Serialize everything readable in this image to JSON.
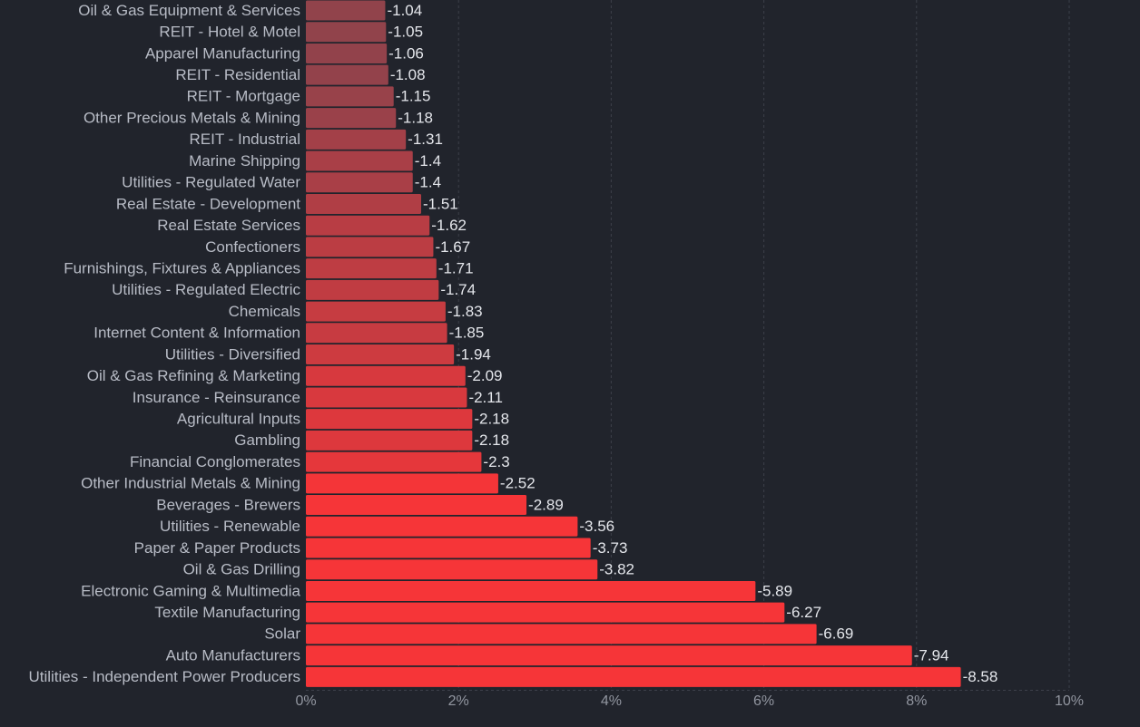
{
  "chart_data": {
    "type": "bar",
    "orientation": "horizontal",
    "categories": [
      "Oil & Gas Equipment & Services",
      "REIT - Hotel & Motel",
      "Apparel Manufacturing",
      "REIT - Residential",
      "REIT - Mortgage",
      "Other Precious Metals & Mining",
      "REIT - Industrial",
      "Marine Shipping",
      "Utilities - Regulated Water",
      "Real Estate - Development",
      "Real Estate Services",
      "Confectioners",
      "Furnishings, Fixtures & Appliances",
      "Utilities - Regulated Electric",
      "Chemicals",
      "Internet Content & Information",
      "Utilities - Diversified",
      "Oil & Gas Refining & Marketing",
      "Insurance - Reinsurance",
      "Agricultural Inputs",
      "Gambling",
      "Financial Conglomerates",
      "Other Industrial Metals & Mining",
      "Beverages - Brewers",
      "Utilities - Renewable",
      "Paper & Paper Products",
      "Oil & Gas Drilling",
      "Electronic Gaming & Multimedia",
      "Textile Manufacturing",
      "Solar",
      "Auto Manufacturers",
      "Utilities - Independent Power Producers"
    ],
    "values": [
      -1.04,
      -1.05,
      -1.06,
      -1.08,
      -1.15,
      -1.18,
      -1.31,
      -1.4,
      -1.4,
      -1.51,
      -1.62,
      -1.67,
      -1.71,
      -1.74,
      -1.83,
      -1.85,
      -1.94,
      -2.09,
      -2.11,
      -2.18,
      -2.18,
      -2.3,
      -2.52,
      -2.89,
      -3.56,
      -3.73,
      -3.82,
      -5.89,
      -6.27,
      -6.69,
      -7.94,
      -8.58
    ],
    "data_labels": [
      "-1.04",
      "-1.05",
      "-1.06",
      "-1.08",
      "-1.15",
      "-1.18",
      "-1.31",
      "-1.4",
      "-1.4",
      "-1.51",
      "-1.62",
      "-1.67",
      "-1.71",
      "-1.74",
      "-1.83",
      "-1.85",
      "-1.94",
      "-2.09",
      "-2.11",
      "-2.18",
      "-2.18",
      "-2.3",
      "-2.52",
      "-2.89",
      "-3.56",
      "-3.73",
      "-3.82",
      "-5.89",
      "-6.27",
      "-6.69",
      "-7.94",
      "-8.58"
    ],
    "bar_length": "absolute value",
    "xlim": [
      0,
      10
    ],
    "x_ticks": [
      "0%",
      "2%",
      "4%",
      "6%",
      "8%",
      "10%"
    ],
    "grid": "vertical dashed",
    "title": "",
    "xlabel": "",
    "ylabel": "",
    "colors": {
      "background": "#21242c",
      "bar_weak": "#8e434c",
      "bar_strong": "#f63538",
      "label_text": "#b8bcc6",
      "value_text": "#e4e6eb",
      "tick_text": "#9296a0",
      "grid": "#3c404a"
    }
  }
}
